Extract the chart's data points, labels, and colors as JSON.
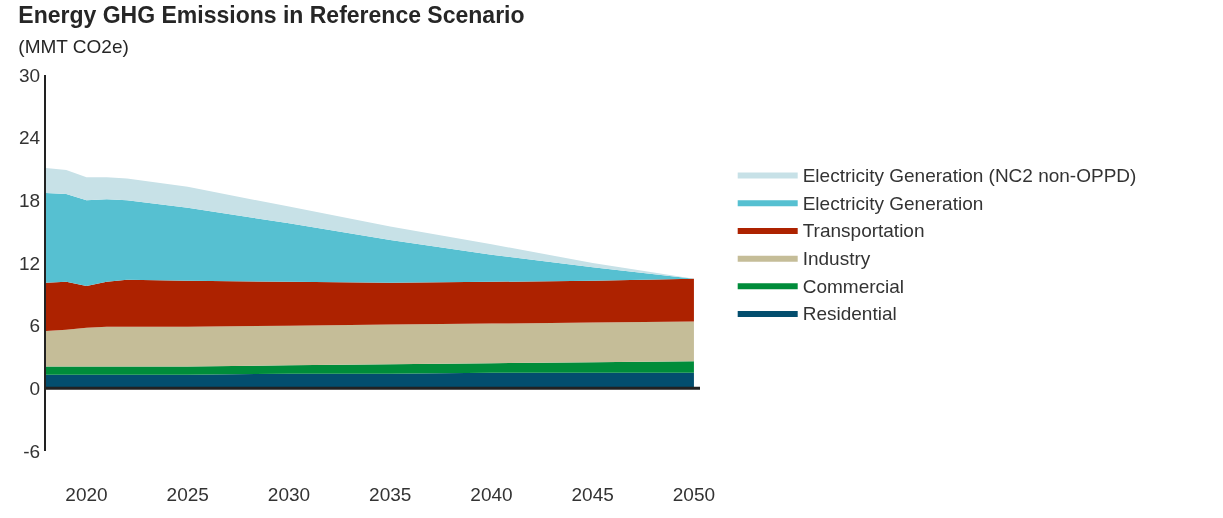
{
  "chart_data": {
    "type": "area",
    "stacked": true,
    "title": "Energy GHG Emissions in Reference Scenario",
    "subtitle": "(MMT CO2e)",
    "x": [
      2018,
      2019,
      2020,
      2021,
      2022,
      2025,
      2030,
      2035,
      2040,
      2045,
      2050
    ],
    "series": [
      {
        "name": "Residential",
        "color": "#034e6e",
        "values": [
          1.3,
          1.3,
          1.3,
          1.3,
          1.3,
          1.3,
          1.4,
          1.4,
          1.5,
          1.5,
          1.5
        ]
      },
      {
        "name": "Commercial",
        "color": "#008c3a",
        "values": [
          0.8,
          0.8,
          0.8,
          0.8,
          0.8,
          0.8,
          0.8,
          0.9,
          0.9,
          1.0,
          1.1
        ]
      },
      {
        "name": "Industry",
        "color": "#c5bd98",
        "values": [
          3.4,
          3.5,
          3.7,
          3.8,
          3.8,
          3.8,
          3.8,
          3.8,
          3.8,
          3.8,
          3.8
        ]
      },
      {
        "name": "Transportation",
        "color": "#ad2200",
        "values": [
          4.6,
          4.6,
          4.0,
          4.3,
          4.5,
          4.4,
          4.2,
          4.0,
          4.0,
          4.0,
          4.1
        ]
      },
      {
        "name": "Electricity Generation",
        "color": "#56c0d1",
        "values": [
          8.6,
          8.4,
          8.2,
          7.9,
          7.6,
          7.0,
          5.6,
          4.1,
          2.6,
          1.3,
          0
        ]
      },
      {
        "name": "Electricity Generation (NC2 non-OPPD)",
        "color": "#c7e1e7",
        "values": [
          2.4,
          2.3,
          2.2,
          2.1,
          2.1,
          2.0,
          1.6,
          1.3,
          1.0,
          0.4,
          0
        ]
      }
    ],
    "xlim": [
      2018,
      2050.3
    ],
    "xticks": [
      2020,
      2025,
      2030,
      2035,
      2040,
      2045,
      2050
    ],
    "ylim": [
      -6,
      30
    ],
    "yticks": [
      -6,
      0,
      6,
      12,
      18,
      24,
      30
    ],
    "ref_lines": [
      {
        "axis": "y",
        "value": 0,
        "color": "#222222"
      }
    ],
    "grid": false,
    "legend": "right"
  }
}
